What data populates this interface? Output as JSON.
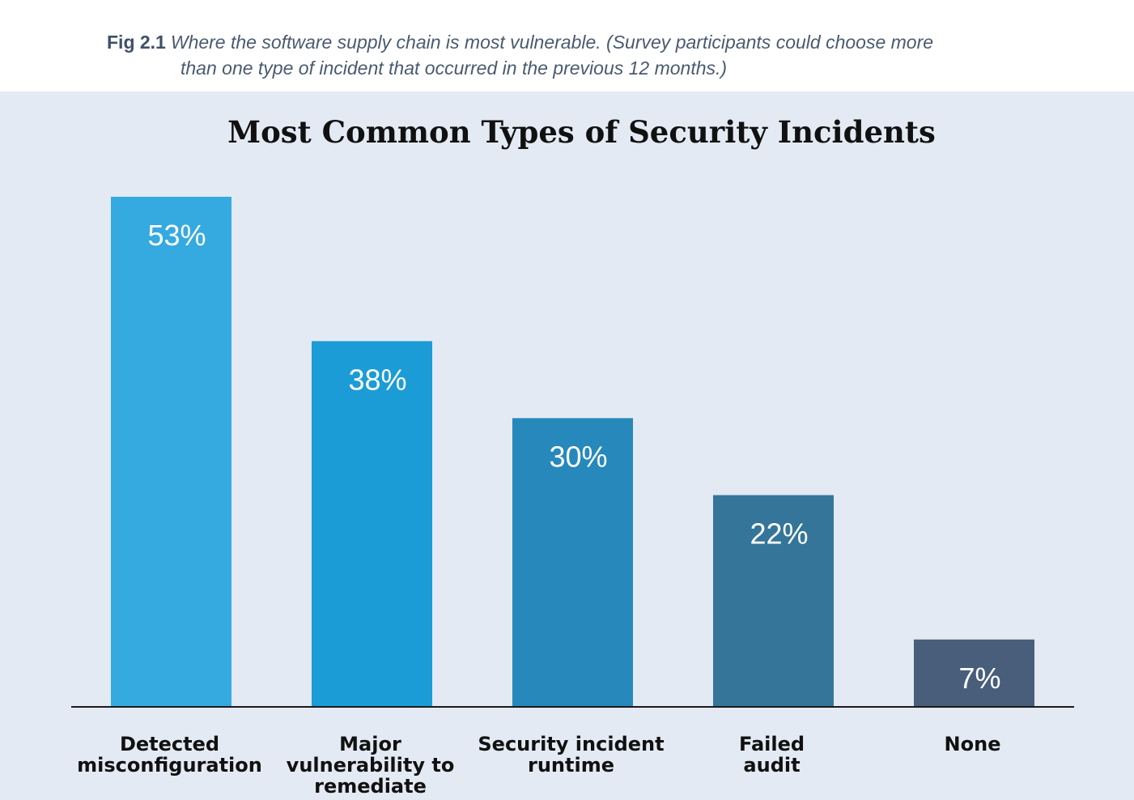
{
  "caption": {
    "label": "Fig 2.1",
    "text_line1": "Where the software supply chain is most vulnerable. (Survey participants could choose more",
    "text_line2": "than one type of incident that occurred in the previous 12 months.)"
  },
  "chart_data": {
    "type": "bar",
    "title": "Most Common Types of Security Incidents",
    "categories": [
      [
        "Detected",
        "misconfiguration"
      ],
      [
        "Major",
        "vulnerability to",
        "remediate"
      ],
      [
        "Security incident",
        "runtime"
      ],
      [
        "Failed",
        "audit"
      ],
      [
        "None"
      ]
    ],
    "values": [
      53,
      38,
      30,
      22,
      7
    ],
    "value_labels": [
      "53%",
      "38%",
      "30%",
      "22%",
      "7%"
    ],
    "colors": [
      "#35aae0",
      "#1c9cd6",
      "#2788bb",
      "#347599",
      "#485e7b"
    ],
    "ylim": [
      0,
      53
    ],
    "grid": false,
    "legend": "none"
  }
}
